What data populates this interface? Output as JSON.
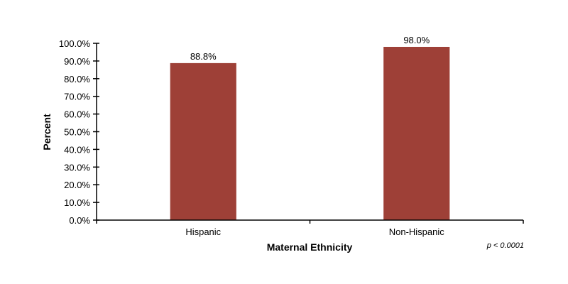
{
  "chart_data": {
    "type": "bar",
    "categories": [
      "Hispanic",
      "Non-Hispanic"
    ],
    "values": [
      88.8,
      98.0
    ],
    "data_labels": [
      "88.8%",
      "98.0%"
    ],
    "xlabel": "Maternal Ethnicity",
    "ylabel": "Percent",
    "ylim": [
      0,
      100
    ],
    "yticks": [
      "0.0%",
      "10.0%",
      "20.0%",
      "30.0%",
      "40.0%",
      "50.0%",
      "60.0%",
      "70.0%",
      "80.0%",
      "90.0%",
      "100.0%"
    ],
    "annotation": "p < 0.0001",
    "grid": false,
    "bar_color": "#9e4037"
  }
}
